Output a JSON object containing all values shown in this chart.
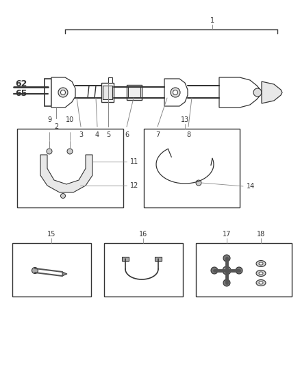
{
  "bg_color": "#ffffff",
  "line_color": "#333333",
  "label_color": "#444444",
  "bold_labels": [
    "62",
    "65"
  ],
  "fig_width": 4.38,
  "fig_height": 5.33,
  "dpi": 100
}
